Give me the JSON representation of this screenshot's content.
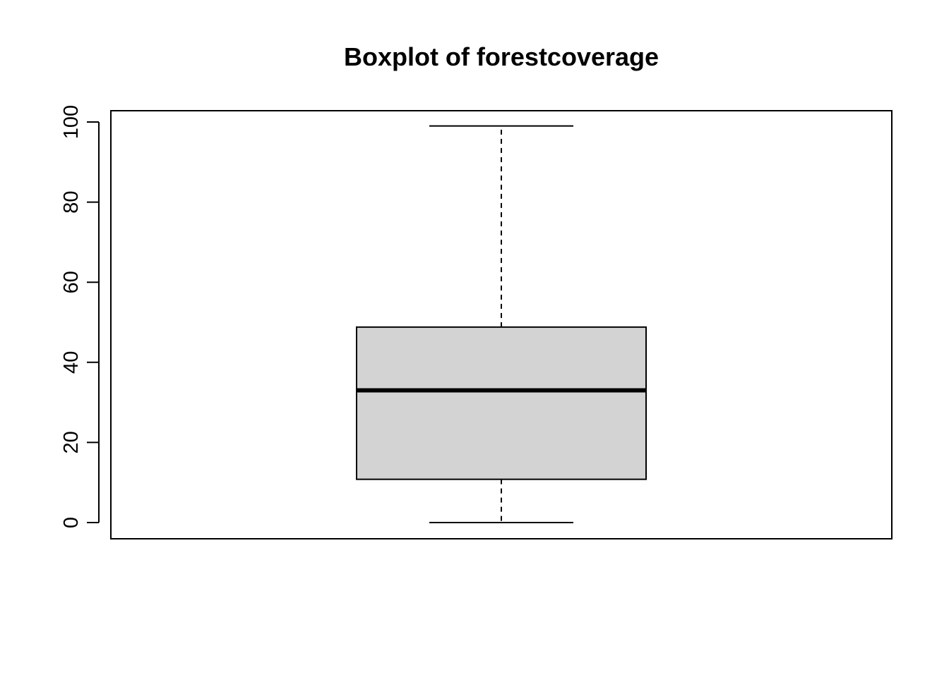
{
  "chart_data": {
    "type": "boxplot",
    "title": "Boxplot of forestcoverage",
    "xlabel": "",
    "ylabel": "",
    "ylim": [
      0,
      100
    ],
    "yticks": [
      0,
      20,
      40,
      60,
      80,
      100
    ],
    "ytick_labels": [
      "0",
      "20",
      "40",
      "60",
      "80",
      "100"
    ],
    "grid": false,
    "box": {
      "min": 0,
      "q1": 10.8,
      "median": 33,
      "q3": 48.8,
      "max": 99
    },
    "colors": {
      "box_fill": "#d3d3d3",
      "stroke": "#000000",
      "background": "#ffffff"
    }
  }
}
